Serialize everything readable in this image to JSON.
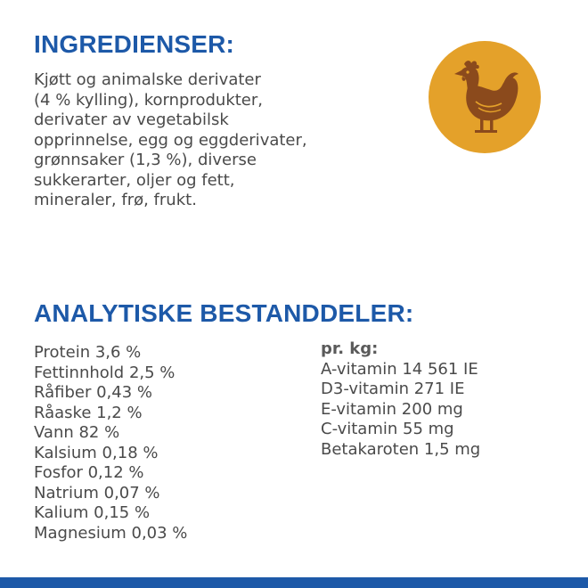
{
  "ingredients": {
    "heading": "INGREDIENSER:",
    "lines": [
      "Kjøtt og animalske derivater",
      "(4 % kylling), kornprodukter,",
      "derivater av vegetabilsk",
      "opprinnelse, egg og eggderivater,",
      "grønnsaker (1,3 %), diverse",
      "sukkerarter, oljer og fett,",
      "mineraler, frø, frukt."
    ],
    "icon": "chicken-icon",
    "icon_bg_color": "#e4a12a",
    "icon_color": "#8b4a1c"
  },
  "analytical": {
    "heading": "ANALYTISKE BESTANDDELER:",
    "left": [
      "Protein 3,6 %",
      "Fettinnhold 2,5 %",
      "Råfiber 0,43 %",
      "Råaske 1,2 %",
      "Vann 82 %",
      "Kalsium 0,18 %",
      "Fosfor 0,12 %",
      "Natrium 0,07 %",
      "Kalium 0,15 %",
      "Magnesium 0,03 %"
    ],
    "right_heading": "pr. kg:",
    "right": [
      "A-vitamin 14 561 IE",
      "D3-vitamin 271 IE",
      "E-vitamin 200 mg",
      "C-vitamin 55 mg",
      "Betakaroten 1,5 mg"
    ]
  },
  "colors": {
    "heading": "#1d59a8",
    "text": "#4a4a4a",
    "bottom_bar": "#1d59a8"
  }
}
